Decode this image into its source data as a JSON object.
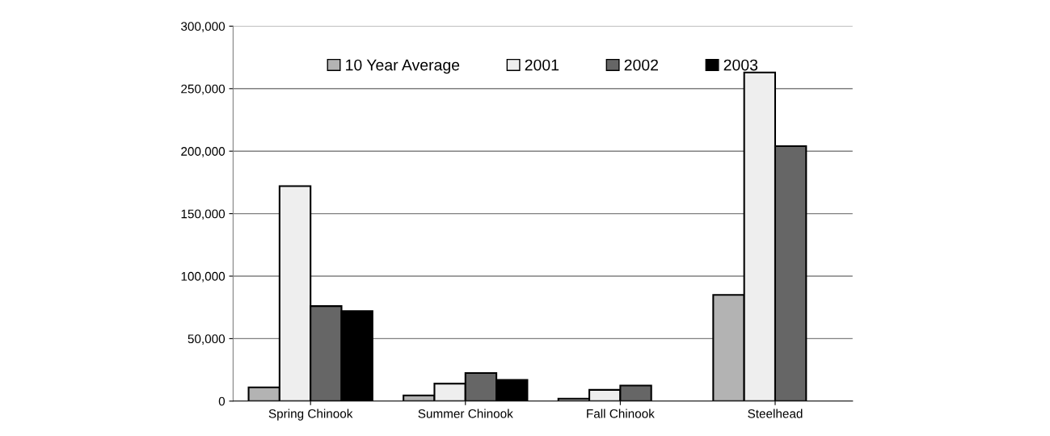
{
  "chart_data": {
    "type": "bar",
    "categories": [
      "Spring Chinook",
      "Summer Chinook",
      "Fall Chinook",
      "Steelhead"
    ],
    "series": [
      {
        "name": "10 Year Average",
        "color": "#b3b3b3",
        "values": [
          11000,
          4600,
          2000,
          85000
        ]
      },
      {
        "name": "2001",
        "color": "#eeeeee",
        "values": [
          172000,
          14000,
          9000,
          263000
        ]
      },
      {
        "name": "2002",
        "color": "#666666",
        "values": [
          76000,
          22500,
          12500,
          204000
        ]
      },
      {
        "name": "2003",
        "color": "#000000",
        "values": [
          72000,
          17000,
          null,
          null
        ]
      }
    ],
    "ylim": [
      0,
      300000
    ],
    "yticks": [
      {
        "value": 0,
        "label": "0"
      },
      {
        "value": 50000,
        "label": "50,000"
      },
      {
        "value": 100000,
        "label": "100,000"
      },
      {
        "value": 150000,
        "label": "150,000"
      },
      {
        "value": 200000,
        "label": "200,000"
      },
      {
        "value": 250000,
        "label": "250,000"
      },
      {
        "value": 300000,
        "label": "300,000"
      }
    ],
    "grid": "y",
    "legend": "top"
  }
}
